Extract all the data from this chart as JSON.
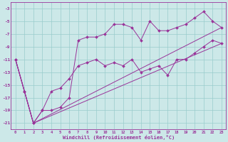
{
  "xlabel": "Windchill (Refroidissement éolien,°C)",
  "bg_color": "#cce8e8",
  "line_color": "#993399",
  "grid_color": "#99cccc",
  "ylim": [
    -22,
    -2
  ],
  "xlim": [
    -0.5,
    23.5
  ],
  "yticks": [
    -21,
    -19,
    -17,
    -15,
    -13,
    -11,
    -9,
    -7,
    -5,
    -3
  ],
  "xticks": [
    0,
    1,
    2,
    3,
    4,
    5,
    6,
    7,
    8,
    9,
    10,
    11,
    12,
    13,
    14,
    15,
    16,
    17,
    18,
    19,
    20,
    21,
    22,
    23
  ],
  "series1_x": [
    0,
    1,
    2,
    3,
    4,
    5,
    6,
    7,
    8,
    9,
    10,
    11,
    12,
    13,
    14,
    15,
    16,
    17,
    18,
    19,
    20,
    21,
    22,
    23
  ],
  "series1_y": [
    -11,
    -16,
    -21,
    -19,
    -16,
    -15.5,
    -14,
    -12,
    -11.5,
    -11,
    -12,
    -11.5,
    -12,
    -11,
    -13,
    -12.5,
    -12,
    -13.5,
    -11,
    -11,
    -10,
    -9,
    -8,
    -8.5
  ],
  "series2_x": [
    0,
    1,
    2,
    3,
    4,
    5,
    6,
    7,
    8,
    9,
    10,
    11,
    12,
    13,
    14,
    15,
    16,
    17,
    18,
    19,
    20,
    21,
    22,
    23
  ],
  "series2_y": [
    -11,
    -16,
    -21,
    -19,
    -19,
    -18.5,
    -17,
    -8,
    -7.5,
    -7.5,
    -7,
    -5.5,
    -5.5,
    -6,
    -8,
    -5,
    -6.5,
    -6.5,
    -6,
    -5.5,
    -4.5,
    -3.5,
    -5,
    -6
  ],
  "series3_x": [
    0,
    2,
    23
  ],
  "series3_y": [
    -11,
    -21,
    -8.5
  ],
  "series4_x": [
    0,
    2,
    23
  ],
  "series4_y": [
    -11,
    -21,
    -6.0
  ]
}
